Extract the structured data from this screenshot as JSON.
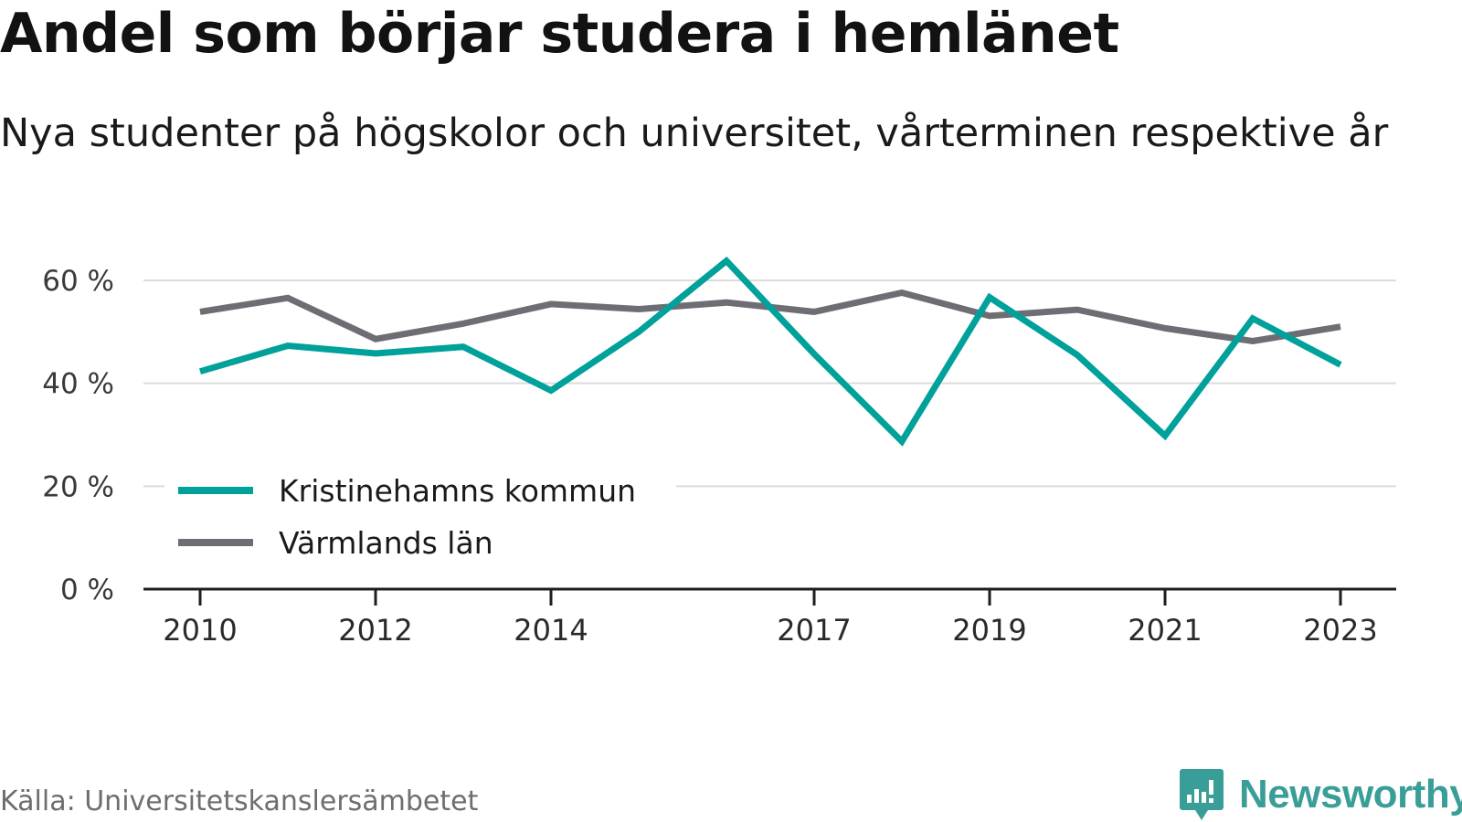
{
  "header": {
    "title": "Andel som börjar studera i hemlänet",
    "subtitle": "Nya studenter på högskolor och universitet, vårterminen respektive år"
  },
  "footer": {
    "source": "Källa: Universitetskanslersämbetet",
    "brand": "Newsworthy"
  },
  "colors": {
    "kristinehamn": "#00a19a",
    "varmland": "#6e6d73",
    "grid": "#dcdcdc",
    "axis": "#1e1e1e",
    "brand": "#3a9e98"
  },
  "chart_data": {
    "type": "line",
    "title": "Andel som börjar studera i hemlänet",
    "subtitle": "Nya studenter på högskolor och universitet, vårterminen respektive år",
    "x": [
      2010,
      2011,
      2012,
      2013,
      2014,
      2015,
      2016,
      2017,
      2018,
      2019,
      2020,
      2021,
      2022,
      2023
    ],
    "x_tick_labels": [
      "2010",
      "2012",
      "2014",
      "2017",
      "2019",
      "2021",
      "2023"
    ],
    "y_ticks": [
      0,
      20,
      40,
      60
    ],
    "y_tick_labels": [
      "0 %",
      "20 %",
      "40 %",
      "60 %"
    ],
    "ylim": [
      0,
      60
    ],
    "y_unit": "%",
    "grid": true,
    "legend": "bottom-left",
    "series": [
      {
        "name": "Kristinehamns kommun",
        "color": "#00a19a",
        "values": [
          42.3,
          47.3,
          45.8,
          47.1,
          38.6,
          50.0,
          63.8,
          45.7,
          28.7,
          56.7,
          45.5,
          29.8,
          52.6,
          43.6
        ]
      },
      {
        "name": "Värmlands län",
        "color": "#6e6d73",
        "values": [
          53.9,
          56.6,
          48.6,
          51.6,
          55.4,
          54.4,
          55.7,
          53.9,
          57.6,
          53.1,
          54.3,
          50.7,
          48.2,
          51.0
        ]
      }
    ]
  }
}
